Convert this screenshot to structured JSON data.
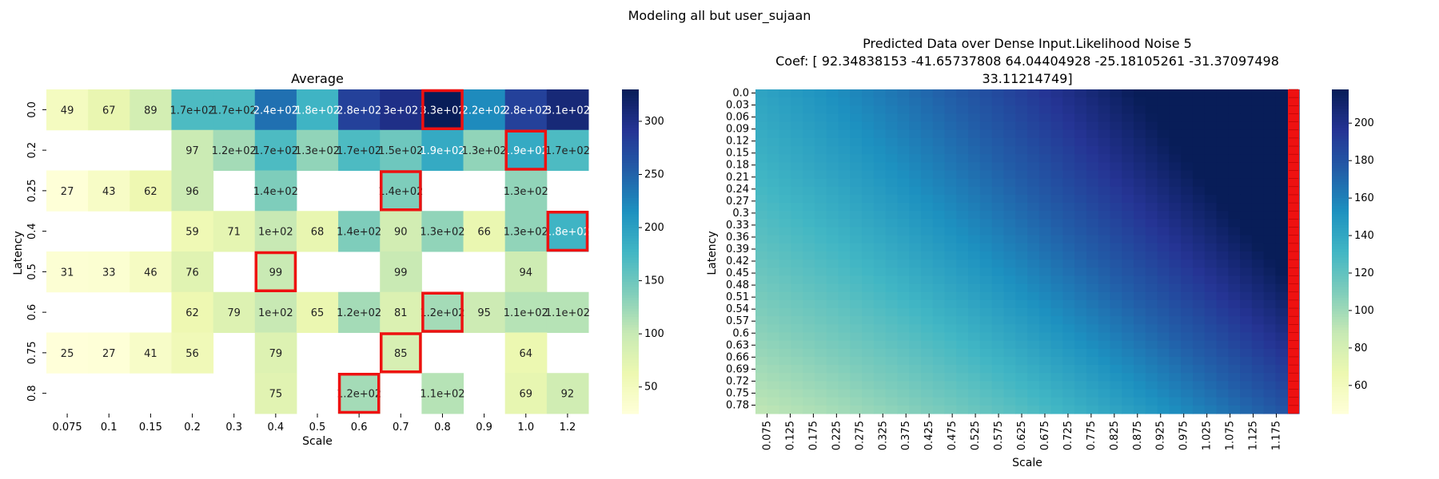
{
  "figure": {
    "suptitle": "Modeling all but user_sujaan"
  },
  "chart_data": [
    {
      "type": "heatmap",
      "title": "Average",
      "xlabel": "Scale",
      "ylabel": "Latency",
      "x_ticks": [
        "0.075",
        "0.1",
        "0.15",
        "0.2",
        "0.3",
        "0.4",
        "0.5",
        "0.6",
        "0.7",
        "0.8",
        "0.9",
        "1.0",
        "1.2"
      ],
      "y_ticks": [
        "0.0",
        "0.2",
        "0.25",
        "0.4",
        "0.5",
        "0.6",
        "0.75",
        "0.8"
      ],
      "colormap": "YlGnBu",
      "vmin": 25,
      "vmax": 330,
      "colorbar_ticks": [
        50,
        100,
        150,
        200,
        250,
        300
      ],
      "highlight_color": "#ee1111",
      "values": [
        [
          49,
          67,
          89,
          170,
          170,
          240,
          180,
          280,
          300,
          330,
          220,
          280,
          310
        ],
        [
          null,
          null,
          null,
          97,
          120,
          170,
          130,
          170,
          150,
          190,
          130,
          190,
          170
        ],
        [
          27,
          43,
          62,
          96,
          null,
          140,
          null,
          null,
          140,
          null,
          null,
          130,
          null
        ],
        [
          null,
          null,
          null,
          59,
          71,
          100,
          68,
          140,
          90,
          130,
          66,
          130,
          180
        ],
        [
          31,
          33,
          46,
          76,
          null,
          99,
          null,
          null,
          99,
          null,
          null,
          94,
          null
        ],
        [
          null,
          null,
          null,
          62,
          79,
          100,
          65,
          120,
          81,
          120,
          95,
          110,
          110
        ],
        [
          25,
          27,
          41,
          56,
          null,
          79,
          null,
          null,
          85,
          null,
          null,
          64,
          null
        ],
        [
          null,
          null,
          null,
          null,
          null,
          75,
          null,
          120,
          null,
          110,
          null,
          69,
          92
        ]
      ],
      "labels": [
        [
          "49",
          "67",
          "89",
          "1.7e+02",
          "1.7e+02",
          "2.4e+02",
          "1.8e+02",
          "2.8e+02",
          "3e+02",
          "3.3e+02",
          "2.2e+02",
          "2.8e+02",
          "3.1e+02"
        ],
        [
          "",
          "",
          "",
          "97",
          "1.2e+02",
          "1.7e+02",
          "1.3e+02",
          "1.7e+02",
          "1.5e+02",
          "1.9e+02",
          "1.3e+02",
          "1.9e+02",
          "1.7e+02"
        ],
        [
          "27",
          "43",
          "62",
          "96",
          "",
          "1.4e+02",
          "",
          "",
          "1.4e+02",
          "",
          "",
          "1.3e+02",
          ""
        ],
        [
          "",
          "",
          "",
          "59",
          "71",
          "1e+02",
          "68",
          "1.4e+02",
          "90",
          "1.3e+02",
          "66",
          "1.3e+02",
          "1.8e+02"
        ],
        [
          "31",
          "33",
          "46",
          "76",
          "",
          "99",
          "",
          "",
          "99",
          "",
          "",
          "94",
          ""
        ],
        [
          "",
          "",
          "",
          "62",
          "79",
          "1e+02",
          "65",
          "1.2e+02",
          "81",
          "1.2e+02",
          "95",
          "1.1e+02",
          "1.1e+02"
        ],
        [
          "25",
          "27",
          "41",
          "56",
          "",
          "79",
          "",
          "",
          "85",
          "",
          "",
          "64",
          ""
        ],
        [
          "",
          "",
          "",
          "",
          "",
          "75",
          "",
          "1.2e+02",
          "",
          "1.1e+02",
          "",
          "69",
          "92"
        ]
      ],
      "highlighted_cells": [
        [
          0,
          9
        ],
        [
          1,
          11
        ],
        [
          2,
          8
        ],
        [
          3,
          12
        ],
        [
          4,
          5
        ],
        [
          5,
          9
        ],
        [
          6,
          8
        ],
        [
          7,
          7
        ]
      ]
    },
    {
      "type": "heatmap",
      "title": "Predicted Data over Dense Input.Likelihood Noise 5",
      "subtitle_lines": [
        "Coef: [ 92.34838153 -41.65737808  64.04404928 -25.18105261 -31.37097498",
        "33.11214749]"
      ],
      "xlabel": "Scale",
      "ylabel": "Latency",
      "x_ticks": [
        "0.075",
        "0.125",
        "0.175",
        "0.225",
        "0.275",
        "0.325",
        "0.375",
        "0.425",
        "0.475",
        "0.525",
        "0.575",
        "0.625",
        "0.675",
        "0.725",
        "0.775",
        "0.825",
        "0.875",
        "0.925",
        "0.975",
        "1.025",
        "1.075",
        "1.125",
        "1.175"
      ],
      "y_ticks": [
        "0.0",
        "0.03",
        "0.06",
        "0.09",
        "0.12",
        "0.15",
        "0.18",
        "0.21",
        "0.24",
        "0.27",
        "0.3",
        "0.33",
        "0.36",
        "0.39",
        "0.42",
        "0.45",
        "0.48",
        "0.51",
        "0.54",
        "0.57",
        "0.6",
        "0.63",
        "0.66",
        "0.69",
        "0.72",
        "0.75",
        "0.78"
      ],
      "grid_x_range": [
        0.075,
        1.2
      ],
      "grid_y_range": [
        0.0,
        0.8
      ],
      "coef": [
        92.34838153,
        -41.65737808,
        64.04404928,
        -25.18105261,
        -31.37097498,
        33.11214749
      ],
      "colormap": "YlGnBu",
      "vmin": 45,
      "vmax": 218,
      "colorbar_ticks": [
        60,
        80,
        100,
        120,
        140,
        160,
        180,
        200
      ],
      "highlight_color": "#ee1111",
      "highlighted_column": "last"
    }
  ]
}
